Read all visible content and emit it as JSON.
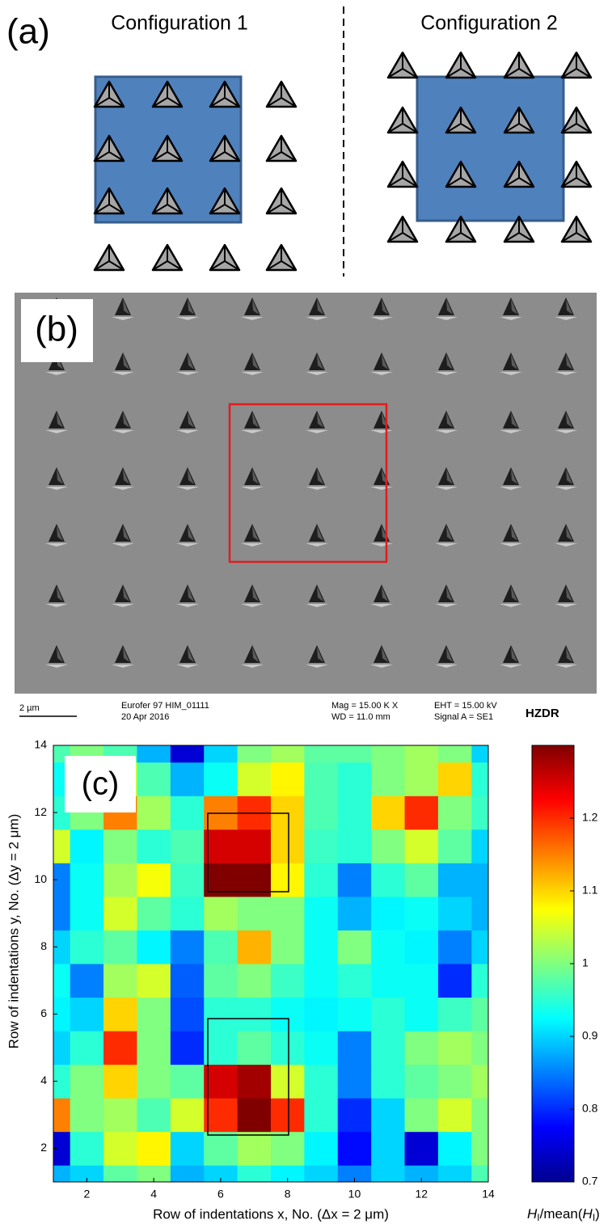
{
  "panel_a": {
    "label": "(a)",
    "config_1": "Configuration 1",
    "config_2": "Configuration 2"
  },
  "panel_b": {
    "label": "(b)",
    "scale_bar": "2 µm",
    "sample": "Eurofer 97 HIM_01111",
    "date": "20 Apr 2016",
    "mag": "Mag =  15.00 K X",
    "wd": "WD = 11.0 mm",
    "eht": "EHT = 15.00 kV",
    "signal": "Signal A = SE1",
    "logo": "HZDR"
  },
  "chart_data": {
    "type": "contour",
    "label": "(c)",
    "x_label": "Row of indentations  x, No. (Δx = 2 μm)",
    "y_label": "Row of indentations  y, No. (Δy = 2 μm)",
    "x": [
      1,
      2,
      3,
      4,
      5,
      6,
      7,
      8,
      9,
      10,
      11,
      12,
      13,
      14
    ],
    "y": [
      1,
      2,
      3,
      4,
      5,
      6,
      7,
      8,
      9,
      10,
      11,
      12,
      13,
      14
    ],
    "z": [
      [
        0.88,
        0.9,
        0.98,
        1.0,
        0.88,
        0.9,
        0.95,
        0.92,
        0.9,
        0.85,
        0.9,
        0.88,
        0.9,
        0.97
      ],
      [
        0.75,
        0.95,
        1.05,
        1.08,
        0.9,
        0.98,
        1.02,
        1.0,
        0.92,
        0.78,
        0.9,
        0.75,
        0.92,
        1.0
      ],
      [
        1.15,
        1.0,
        1.02,
        0.97,
        1.05,
        1.2,
        1.3,
        1.2,
        0.95,
        0.8,
        0.9,
        1.0,
        1.05,
        1.0
      ],
      [
        0.95,
        1.0,
        1.1,
        1.0,
        0.98,
        1.25,
        1.28,
        1.05,
        0.95,
        0.85,
        0.95,
        0.98,
        1.0,
        1.02
      ],
      [
        0.9,
        0.95,
        1.2,
        1.0,
        0.8,
        0.95,
        0.98,
        0.95,
        0.93,
        0.85,
        0.95,
        1.0,
        1.02,
        1.0
      ],
      [
        0.92,
        0.9,
        1.1,
        1.0,
        0.82,
        0.95,
        0.95,
        0.93,
        0.92,
        0.93,
        0.95,
        0.93,
        0.96,
        0.98
      ],
      [
        0.93,
        0.85,
        1.02,
        1.05,
        0.83,
        0.98,
        1.0,
        0.96,
        0.93,
        0.95,
        0.93,
        0.93,
        0.8,
        0.95
      ],
      [
        0.9,
        0.95,
        0.98,
        0.92,
        0.85,
        0.97,
        1.12,
        1.0,
        0.93,
        1.0,
        0.93,
        0.92,
        0.85,
        0.9
      ],
      [
        0.85,
        0.93,
        1.05,
        0.98,
        0.95,
        1.02,
        1.0,
        1.0,
        0.93,
        0.88,
        0.92,
        0.93,
        0.9,
        0.88
      ],
      [
        0.85,
        0.93,
        1.02,
        1.07,
        0.96,
        1.3,
        1.3,
        1.08,
        0.95,
        0.85,
        0.95,
        0.98,
        0.88,
        0.88
      ],
      [
        1.05,
        0.92,
        1.0,
        0.95,
        0.97,
        1.25,
        1.25,
        1.1,
        0.96,
        0.95,
        1.0,
        1.05,
        0.98,
        0.9
      ],
      [
        0.95,
        1.0,
        1.15,
        1.02,
        0.95,
        1.15,
        1.2,
        1.1,
        0.97,
        0.95,
        1.1,
        1.2,
        1.0,
        0.96
      ],
      [
        0.93,
        0.98,
        1.05,
        0.97,
        0.88,
        0.93,
        1.05,
        1.08,
        0.97,
        0.95,
        1.0,
        1.02,
        1.1,
        0.95
      ],
      [
        0.97,
        1.0,
        0.97,
        0.88,
        0.75,
        0.9,
        1.0,
        1.02,
        0.98,
        0.98,
        1.0,
        1.02,
        1.0,
        0.9
      ]
    ],
    "xlim": [
      1,
      14
    ],
    "ylim": [
      1,
      14
    ],
    "xticks": [
      2,
      4,
      6,
      8,
      10,
      12,
      14
    ],
    "yticks": [
      2,
      4,
      6,
      8,
      10,
      12,
      14
    ],
    "colormap": "jet",
    "colorbar": {
      "label": [
        "H",
        "I",
        "/mean(",
        "H",
        "I",
        ")"
      ],
      "lim": [
        0.7,
        1.3
      ],
      "ticks": [
        0.7,
        0.8,
        0.9,
        1,
        1.1,
        1.2
      ]
    }
  }
}
